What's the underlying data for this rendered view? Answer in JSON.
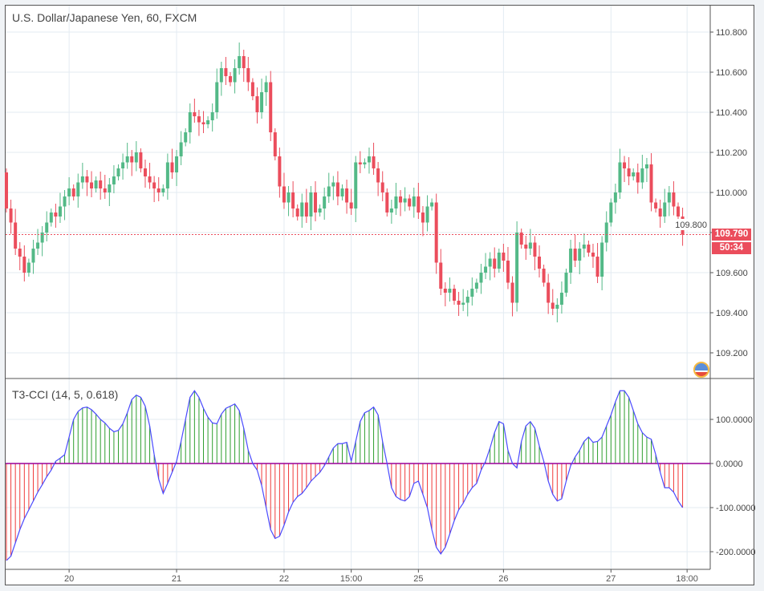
{
  "header": {
    "title": "U.S. Dollar/Japanese Yen, 60, FXCM"
  },
  "indicator": {
    "title": "T3-CCI (14, 5, 0.618)"
  },
  "price_badge": {
    "last_price": "109.790",
    "countdown": "50:34"
  },
  "colors": {
    "up": "#53b987",
    "down": "#eb4d5c",
    "cci_line": "#4a4aff",
    "zero_line": "#990099",
    "grid": "#e3ebf2"
  },
  "chart_data": [
    {
      "type": "candlestick",
      "title": "U.S. Dollar/Japanese Yen, 60, FXCM",
      "y_ticks": [
        "110.800",
        "110.600",
        "110.400",
        "110.200",
        "110.000",
        "109.800",
        "109.600",
        "109.400",
        "109.200"
      ],
      "y_tick_values": [
        110.8,
        110.6,
        110.4,
        110.2,
        110.0,
        109.8,
        109.6,
        109.4,
        109.2
      ],
      "ylim": [
        109.07,
        110.935
      ],
      "x_ticks": [
        {
          "label": "20",
          "index": 14
        },
        {
          "label": "21",
          "index": 38
        },
        {
          "label": "22",
          "index": 62
        },
        {
          "label": "15:00",
          "index": 77
        },
        {
          "label": "25",
          "index": 92
        },
        {
          "label": "26",
          "index": 111
        },
        {
          "label": "27",
          "index": 135
        },
        {
          "label": "18:00",
          "index": 152
        }
      ],
      "first_open": 110.1,
      "close": [
        109.92,
        109.85,
        109.72,
        109.68,
        109.6,
        109.65,
        109.72,
        109.75,
        109.8,
        109.85,
        109.9,
        109.88,
        109.93,
        109.98,
        110.02,
        109.98,
        110.05,
        110.08,
        110.05,
        110.02,
        110.06,
        110.02,
        110.0,
        110.04,
        110.08,
        110.12,
        110.15,
        110.18,
        110.15,
        110.2,
        110.12,
        110.08,
        110.05,
        110.02,
        110.0,
        110.02,
        110.15,
        110.1,
        110.18,
        110.25,
        110.3,
        110.4,
        110.38,
        110.35,
        110.34,
        110.36,
        110.4,
        110.55,
        110.62,
        110.58,
        110.55,
        110.62,
        110.68,
        110.62,
        110.55,
        110.48,
        110.4,
        110.5,
        110.55,
        110.3,
        110.18,
        110.03,
        109.95,
        110.0,
        109.92,
        109.88,
        109.95,
        109.88,
        110.0,
        109.9,
        109.92,
        109.98,
        110.03,
        110.05,
        109.98,
        110.02,
        109.95,
        109.92,
        110.15,
        110.14,
        110.15,
        110.18,
        110.12,
        110.05,
        110.0,
        109.9,
        109.92,
        109.98,
        109.95,
        109.97,
        109.93,
        109.98,
        109.9,
        109.85,
        109.93,
        109.95,
        109.65,
        109.52,
        109.5,
        109.52,
        109.46,
        109.44,
        109.45,
        109.48,
        109.52,
        109.55,
        109.6,
        109.63,
        109.67,
        109.62,
        109.7,
        109.66,
        109.55,
        109.45,
        109.8,
        109.74,
        109.72,
        109.75,
        109.68,
        109.62,
        109.55,
        109.45,
        109.42,
        109.44,
        109.5,
        109.6,
        109.72,
        109.66,
        109.72,
        109.74,
        109.7,
        109.68,
        109.58,
        109.75,
        109.85,
        109.95,
        110.0,
        110.15,
        110.12,
        110.08,
        110.1,
        110.05,
        110.12,
        110.14,
        109.95,
        109.92,
        109.88,
        109.95,
        110.0,
        109.93,
        109.88,
        109.79
      ],
      "last_price_line": 109.79
    },
    {
      "type": "bar+line",
      "title": "T3-CCI (14, 5, 0.618)",
      "y_ticks": [
        "100.0000",
        "0.0000",
        "-100.0000",
        "-200.0000"
      ],
      "y_tick_values": [
        100,
        0,
        -100,
        -200
      ],
      "ylim": [
        -245,
        170
      ],
      "values": [
        -220,
        -210,
        -180,
        -150,
        -125,
        -105,
        -85,
        -65,
        -48,
        -30,
        -15,
        5,
        12,
        20,
        60,
        100,
        118,
        126,
        128,
        122,
        112,
        100,
        92,
        80,
        72,
        75,
        90,
        115,
        145,
        155,
        150,
        130,
        85,
        20,
        -35,
        -68,
        -45,
        -20,
        5,
        50,
        100,
        150,
        165,
        150,
        125,
        105,
        92,
        90,
        112,
        125,
        130,
        135,
        120,
        80,
        30,
        0,
        -15,
        -50,
        -100,
        -150,
        -170,
        -165,
        -140,
        -110,
        -88,
        -75,
        -68,
        -55,
        -40,
        -30,
        -20,
        -5,
        15,
        35,
        45,
        45,
        48,
        5,
        50,
        95,
        115,
        120,
        128,
        110,
        50,
        0,
        -55,
        -75,
        -82,
        -85,
        -75,
        -45,
        -40,
        -70,
        -100,
        -150,
        -190,
        -205,
        -190,
        -160,
        -130,
        -105,
        -90,
        -70,
        -55,
        -45,
        -15,
        5,
        35,
        70,
        95,
        90,
        30,
        0,
        -10,
        50,
        85,
        95,
        80,
        40,
        5,
        -40,
        -70,
        -85,
        -80,
        -40,
        -5,
        15,
        30,
        50,
        60,
        48,
        50,
        60,
        85,
        110,
        140,
        165,
        165,
        150,
        120,
        90,
        70,
        60,
        55,
        20,
        -20,
        -55,
        -55,
        -65,
        -85,
        -100
      ]
    }
  ]
}
